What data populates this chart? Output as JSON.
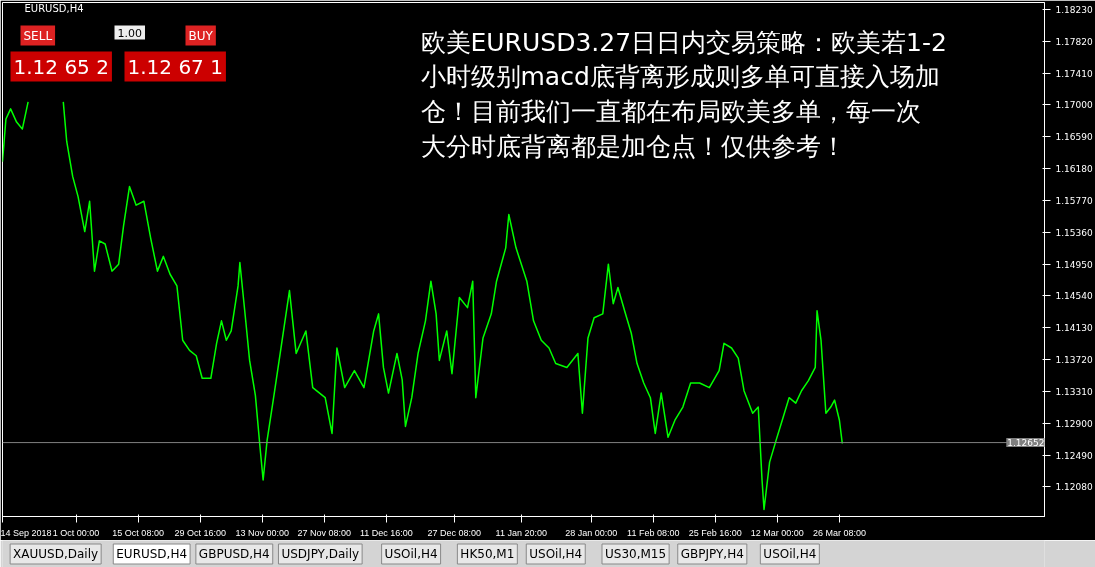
{
  "chart_data": {
    "type": "line",
    "title": "EURUSD,H4",
    "x": [
      "2018-09-14T00:00",
      "2018-09-14T19:00",
      "2018-09-15T21:00",
      "2018-09-17T06:00",
      "2018-09-18T14:00",
      "2018-09-19T22:00",
      "2018-09-24T00:00",
      "2018-09-28T01:00",
      "2018-09-28T20:00",
      "2018-09-30T05:00",
      "2018-10-01T11:00",
      "2018-10-03T00:00",
      "2018-10-04T03:00",
      "2018-10-05T06:00",
      "2018-10-06T09:00",
      "2018-10-07T17:00",
      "2018-10-09T07:00",
      "2018-10-10T20:00",
      "2018-10-11T23:00",
      "2018-10-13T08:00",
      "2018-10-14T21:00",
      "2018-10-16T16:00",
      "2018-10-18T06:00",
      "2018-10-19T19:00",
      "2018-10-21T04:00",
      "2018-10-22T17:00",
      "2018-10-24T07:00",
      "2018-10-25T15:00",
      "2018-10-27T05:00",
      "2018-10-28T18:00",
      "2018-10-30T03:00",
      "2018-11-01T03:00",
      "2018-11-02T11:00",
      "2018-11-03T14:00",
      "2018-11-04T17:00",
      "2018-11-05T20:00",
      "2018-11-07T10:00",
      "2018-11-07T20:00",
      "2018-11-08T23:00",
      "2018-11-10T02:00",
      "2018-11-11T10:00",
      "2018-11-12T13:00",
      "2018-11-13T05:00",
      "2018-11-14T03:00",
      "2018-11-15T17:00",
      "2018-11-17T22:00",
      "2018-11-19T07:00",
      "2018-11-20T20:00",
      "2018-11-23T02:00",
      "2018-11-24T16:00",
      "2018-11-27T13:00",
      "2018-11-29T03:00",
      "2018-11-30T06:00",
      "2018-12-02T01:00",
      "2018-12-04T07:00",
      "2018-12-06T12:00",
      "2018-12-08T18:00",
      "2018-12-09T21:00",
      "2018-12-11T00:00",
      "2018-12-12T04:00",
      "2018-12-14T03:00",
      "2018-12-15T08:00",
      "2018-12-16T02:00",
      "2018-12-17T13:00",
      "2018-12-19T00:00",
      "2018-12-20T17:00",
      "2018-12-21T23:00",
      "2018-12-23T04:00",
      "2018-12-23T22:00",
      "2018-12-25T15:00",
      "2018-12-26T20:00",
      "2018-12-28T13:00",
      "2018-12-30T10:00",
      "2018-12-31T15:00",
      "2019-01-01T08:00",
      "2019-01-03T00:00",
      "2019-01-04T22:00",
      "2019-01-06T03:00",
      "2019-01-08T06:00",
      "2019-01-08T23:00",
      "2019-01-10T15:00",
      "2019-01-13T03:00",
      "2019-01-14T16:00",
      "2019-01-16T11:00",
      "2019-01-18T06:00",
      "2019-01-19T19:00",
      "2019-01-22T09:00",
      "2019-01-24T22:00",
      "2019-01-25T23:00",
      "2019-01-27T06:00",
      "2019-01-28T16:00",
      "2019-01-30T16:00",
      "2019-01-31T23:00",
      "2019-02-02T02:00",
      "2019-02-03T04:00",
      "2019-02-04T17:00",
      "2019-02-06T06:00",
      "2019-02-07T14:00",
      "2019-02-09T03:00",
      "2019-02-10T16:00",
      "2019-02-11T19:00",
      "2019-02-13T04:00",
      "2019-02-14T18:00",
      "2019-02-16T08:00",
      "2019-02-18T04:00",
      "2019-02-19T23:00",
      "2019-02-22T01:00",
      "2019-02-24T07:00",
      "2019-02-26T13:00",
      "2019-02-27T16:00",
      "2019-03-01T10:00",
      "2019-03-02T23:00",
      "2019-03-04T07:00",
      "2019-03-06T07:00",
      "2019-03-07T14:00",
      "2019-03-08T11:00",
      "2019-03-08T22:00",
      "2019-03-10T05:00",
      "2019-03-11T18:00",
      "2019-03-13T03:00",
      "2019-03-14T17:00",
      "2019-03-16T06:00",
      "2019-03-17T14:00",
      "2019-03-19T04:00",
      "2019-03-20T18:00",
      "2019-03-21T04:00",
      "2019-03-22T02:00",
      "2019-03-23T05:00",
      "2019-03-24T08:00",
      "2019-03-25T05:00",
      "2019-03-26T08:00",
      "2019-03-27T00:00"
    ],
    "series": [
      {
        "color": "#00ff00",
        "values": [
          1.1627,
          1.1682,
          1.1695,
          1.1678,
          1.1669,
          1.1704,
          null,
          1.1704,
          1.1653,
          1.1608,
          1.1582,
          1.1537,
          1.1576,
          1.1486,
          1.1525,
          1.1521,
          1.1486,
          1.1495,
          1.1544,
          1.1595,
          1.1571,
          1.1576,
          1.1528,
          1.1486,
          1.1505,
          1.1482,
          1.1467,
          1.1397,
          1.1384,
          1.1377,
          1.1348,
          1.1348,
          1.1393,
          1.1422,
          1.1397,
          1.1409,
          1.1467,
          1.1497,
          1.1435,
          1.1371,
          1.1326,
          1.1256,
          1.1217,
          1.1268,
          1.1326,
          1.1409,
          1.1461,
          1.138,
          1.1409,
          1.1336,
          1.1323,
          1.1277,
          1.1387,
          1.1336,
          1.1358,
          1.1336,
          1.1409,
          1.1431,
          1.1362,
          1.1329,
          1.138,
          1.1346,
          1.1286,
          1.1323,
          1.138,
          1.1422,
          1.1473,
          1.1431,
          1.1371,
          1.1409,
          1.1354,
          1.1452,
          1.1439,
          1.1473,
          1.1323,
          1.14,
          1.1431,
          1.1473,
          1.1516,
          1.1559,
          1.1516,
          1.1473,
          1.1422,
          1.1397,
          1.1387,
          1.1367,
          1.1362,
          1.138,
          1.1303,
          1.14,
          1.1426,
          1.1431,
          1.1495,
          1.1444,
          1.1465,
          1.1435,
          1.1406,
          1.1367,
          1.1342,
          1.1323,
          1.1277,
          1.1329,
          1.1272,
          1.1294,
          1.1311,
          1.1342,
          1.1342,
          1.1336,
          1.1358,
          1.1393,
          1.1387,
          1.1374,
          1.1332,
          1.1303,
          1.1311,
          1.1217,
          1.1179,
          1.124,
          1.1269,
          1.1294,
          1.1323,
          1.1316,
          1.1332,
          1.1345,
          1.1362,
          1.1435,
          1.1397,
          1.1303,
          1.1311,
          1.132,
          1.1294,
          1.1264
        ]
      }
    ],
    "xlim": [
      "2018-09-14T00:00",
      "2019-05-12T17:00"
    ],
    "xticks": [
      {
        "value": "2018-09-14T00:00",
        "label": "14 Sep 2018"
      },
      {
        "value": "2018-10-01T00:00",
        "label": "1 Oct 00:00"
      },
      {
        "value": "2018-10-15T08:00",
        "label": "15 Oct 08:00"
      },
      {
        "value": "2018-10-29T16:00",
        "label": "29 Oct 16:00"
      },
      {
        "value": "2018-11-13T00:00",
        "label": "13 Nov 00:00"
      },
      {
        "value": "2018-11-27T08:00",
        "label": "27 Nov 08:00"
      },
      {
        "value": "2018-12-11T16:00",
        "label": "11 Dec 16:00"
      },
      {
        "value": "2018-12-27T08:00",
        "label": "27 Dec 08:00"
      },
      {
        "value": "2019-01-11T20:00",
        "label": "11 Jan 20:00"
      },
      {
        "value": "2019-01-28T00:00",
        "label": "28 Jan 00:00"
      },
      {
        "value": "2019-02-11T08:00",
        "label": "11 Feb 08:00"
      },
      {
        "value": "2019-02-25T16:00",
        "label": "25 Feb 16:00"
      },
      {
        "value": "2019-03-12T00:00",
        "label": "12 Mar 00:00"
      },
      {
        "value": "2019-03-26T08:00",
        "label": "26 Mar 08:00"
      }
    ],
    "ylim": [
      1.117,
      1.1832
    ],
    "yticks": [
      {
        "value": 1.1823,
        "label": "1.18230"
      },
      {
        "value": 1.1782,
        "label": "1.17820"
      },
      {
        "value": 1.1741,
        "label": "1.17410"
      },
      {
        "value": 1.17,
        "label": "1.17000"
      },
      {
        "value": 1.1659,
        "label": "1.16590"
      },
      {
        "value": 1.1618,
        "label": "1.16180"
      },
      {
        "value": 1.1577,
        "label": "1.15770"
      },
      {
        "value": 1.1536,
        "label": "1.15360"
      },
      {
        "value": 1.1495,
        "label": "1.14950"
      },
      {
        "value": 1.1454,
        "label": "1.14540"
      },
      {
        "value": 1.1413,
        "label": "1.14130"
      },
      {
        "value": 1.1372,
        "label": "1.13720"
      },
      {
        "value": 1.1331,
        "label": "1.13310"
      },
      {
        "value": 1.129,
        "label": "1.12900"
      },
      {
        "value": 1.1249,
        "label": "1.12490"
      },
      {
        "value": 1.1208,
        "label": "1.12080"
      }
    ],
    "ref_lines": [
      {
        "axis": "y",
        "value": 1.12652,
        "label": "1.12652",
        "color": "#808080"
      }
    ],
    "grid": false,
    "annotations": [
      "欧美EURUSD3.27日日内交易策略：欧美若1-2小时级别macd底背离形成则多单可直接入场加仓！目前我们一直都在布局欧美多单，每一次大分时底背离都是加仓点！仅供参考！",
      "SELL",
      "1.00",
      "BUY",
      "1.12 65 2",
      "1.12 67 1",
      "XAUUSD,Daily",
      "EURUSD,H4",
      "GBPUSD,H4",
      "USDJPY,Daily",
      "USOil,H4",
      "HK50,M1",
      "USOil,H4",
      "US30,M15",
      "GBPJPY,H4",
      "USOil,H4"
    ]
  }
}
